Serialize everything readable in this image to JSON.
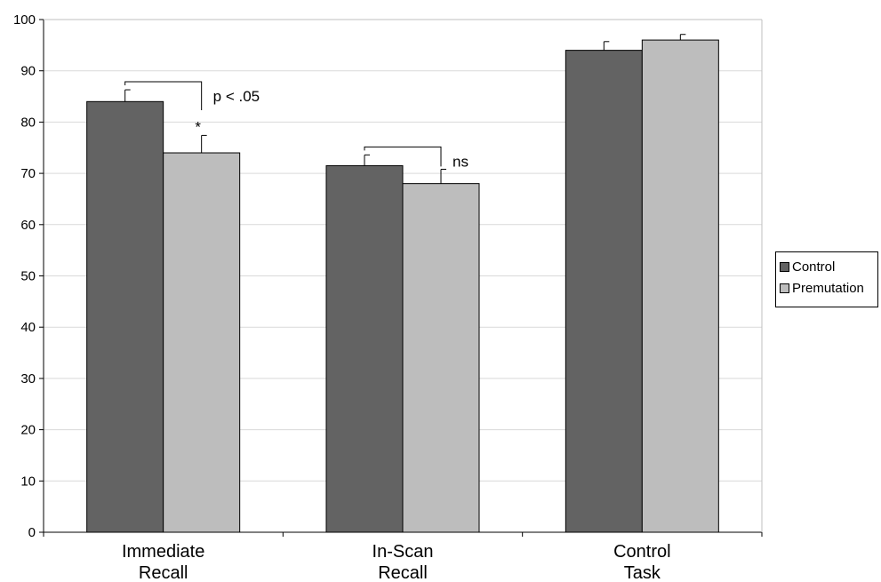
{
  "chart_data": {
    "type": "bar",
    "categories": [
      [
        "Immediate",
        "Recall"
      ],
      [
        "In-Scan",
        "Recall"
      ],
      [
        "Control",
        "Task"
      ]
    ],
    "series": [
      {
        "name": "Control",
        "values": [
          84,
          71.5,
          94
        ],
        "errors": [
          2.3,
          2.1,
          1.7
        ],
        "color": "#636363"
      },
      {
        "name": "Premutation",
        "values": [
          74,
          68,
          96
        ],
        "errors": [
          3.4,
          2.8,
          1.1
        ],
        "color": "#bdbdbd"
      }
    ],
    "ylim": [
      0,
      100
    ],
    "yticks": [
      0,
      10,
      20,
      30,
      40,
      50,
      60,
      70,
      80,
      90,
      100
    ],
    "grid": true,
    "legend": "right",
    "annotations": [
      {
        "category": 0,
        "text": "p < .05",
        "marker": "*"
      },
      {
        "category": 1,
        "text": "ns",
        "marker": ""
      }
    ]
  }
}
